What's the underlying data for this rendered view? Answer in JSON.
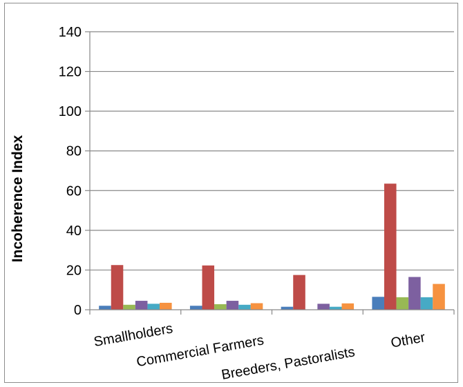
{
  "chart_data": {
    "type": "bar",
    "title": "",
    "xlabel": "",
    "ylabel": "Incoherence Index",
    "ylim": [
      0,
      140
    ],
    "yticks": [
      0,
      20,
      40,
      60,
      80,
      100,
      120,
      140
    ],
    "grid": true,
    "legend": "none",
    "categories": [
      "Smallholders",
      "Commercial Farmers",
      "Breeders, Pastoralists",
      "Other"
    ],
    "series": [
      {
        "color": "#4a7ebb",
        "values": [
          2,
          2,
          1.5,
          6.5
        ]
      },
      {
        "color": "#be4b48",
        "values": [
          22.5,
          22.3,
          17.5,
          63.5
        ]
      },
      {
        "color": "#98b954",
        "values": [
          2.5,
          2.8,
          0,
          6.3
        ]
      },
      {
        "color": "#7d60a0",
        "values": [
          4.5,
          4.5,
          3,
          16.5
        ]
      },
      {
        "color": "#46aac5",
        "values": [
          3,
          2.5,
          1.5,
          6.3
        ]
      },
      {
        "color": "#f69240",
        "values": [
          3.5,
          3.3,
          3.2,
          13
        ]
      }
    ]
  }
}
